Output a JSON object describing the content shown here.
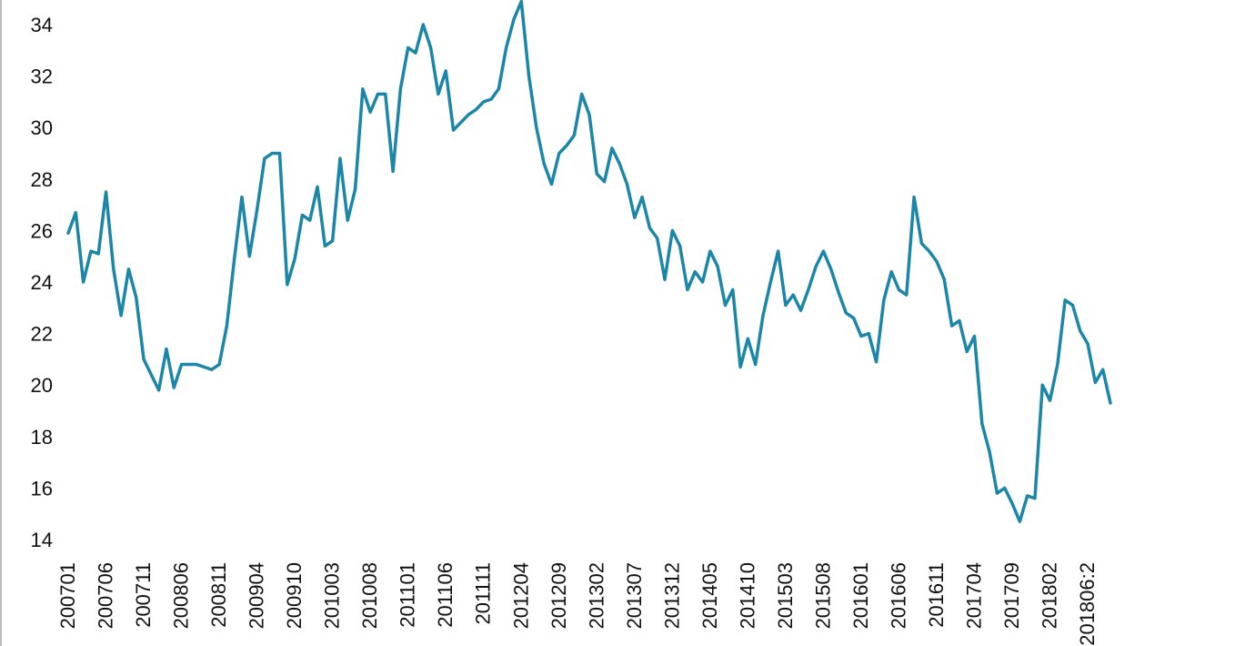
{
  "chart_data": {
    "type": "line",
    "title": "",
    "xlabel": "",
    "ylabel": "",
    "ylim": [
      14,
      35
    ],
    "yticks": [
      14,
      16,
      18,
      20,
      22,
      24,
      26,
      28,
      30,
      32,
      34
    ],
    "x_tick_labels": [
      "200701",
      "200706",
      "200711",
      "200806",
      "200811",
      "200904",
      "200910",
      "201003",
      "201008",
      "201101",
      "201106",
      "201111",
      "201204",
      "201209",
      "201302",
      "201307",
      "201312",
      "201405",
      "201410",
      "201503",
      "201508",
      "201601",
      "201606",
      "201611",
      "201704",
      "201709",
      "201802",
      "201806:2"
    ],
    "grid": false,
    "legend": "none",
    "colors": {
      "line": "#1B86A8",
      "axis": "#bbbbbb",
      "text": "#111111"
    },
    "series": [
      {
        "values": [
          25.9,
          26.7,
          24.0,
          25.2,
          25.1,
          27.5,
          24.5,
          22.7,
          24.5,
          23.4,
          21.0,
          20.4,
          19.8,
          21.4,
          19.9,
          20.8,
          20.8,
          20.8,
          20.7,
          20.6,
          20.8,
          22.3,
          24.9,
          27.3,
          25.0,
          26.8,
          28.8,
          29.0,
          29.0,
          23.9,
          24.9,
          26.6,
          26.4,
          27.7,
          25.4,
          25.6,
          28.8,
          26.4,
          27.6,
          31.5,
          30.6,
          31.3,
          31.3,
          28.3,
          31.5,
          33.1,
          32.9,
          34.0,
          33.1,
          31.3,
          32.2,
          29.9,
          30.2,
          30.5,
          30.7,
          31.0,
          31.1,
          31.5,
          33.1,
          34.2,
          34.9,
          32.0,
          30.0,
          28.6,
          27.8,
          29.0,
          29.3,
          29.7,
          31.3,
          30.5,
          28.2,
          27.9,
          29.2,
          28.6,
          27.8,
          26.5,
          27.3,
          26.1,
          25.7,
          24.1,
          26.0,
          25.4,
          23.7,
          24.4,
          24.0,
          25.2,
          24.6,
          23.1,
          23.7,
          20.7,
          21.8,
          20.8,
          22.7,
          24.0,
          25.2,
          23.1,
          23.5,
          22.9,
          23.7,
          24.6,
          25.2,
          24.5,
          23.6,
          22.8,
          22.6,
          21.9,
          22.0,
          20.9,
          23.3,
          24.4,
          23.7,
          23.5,
          27.3,
          25.5,
          25.2,
          24.8,
          24.1,
          22.3,
          22.5,
          21.3,
          21.9,
          18.5,
          17.4,
          15.8,
          16.0,
          15.4,
          14.7,
          15.7,
          15.6,
          20.0,
          19.4,
          20.8,
          23.3,
          23.1,
          22.1,
          21.6,
          20.1,
          20.6,
          19.3
        ]
      }
    ]
  }
}
